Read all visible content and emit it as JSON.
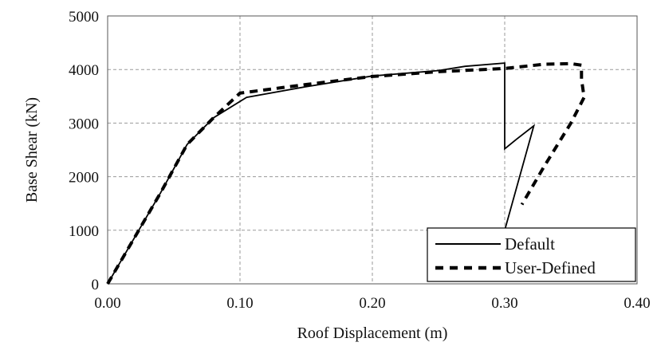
{
  "chart_data": {
    "type": "line",
    "title": "",
    "xlabel": "Roof Displacement (m)",
    "ylabel": "Base Shear (kN)",
    "xlim": [
      0,
      0.4
    ],
    "ylim": [
      0,
      5000
    ],
    "x_ticks": [
      "0.00",
      "0.10",
      "0.20",
      "0.30",
      "0.40"
    ],
    "x_tick_values": [
      0,
      0.1,
      0.2,
      0.3,
      0.4
    ],
    "y_ticks": [
      "0",
      "1000",
      "2000",
      "3000",
      "4000",
      "5000"
    ],
    "y_tick_values": [
      0,
      1000,
      2000,
      3000,
      4000,
      5000
    ],
    "grid": true,
    "legend_position": "bottom-right",
    "series": [
      {
        "name": "Default",
        "style": "solid",
        "color": "#000000",
        "points": [
          [
            0.0,
            0
          ],
          [
            0.02,
            850
          ],
          [
            0.04,
            1700
          ],
          [
            0.06,
            2600
          ],
          [
            0.08,
            3100
          ],
          [
            0.105,
            3480
          ],
          [
            0.15,
            3680
          ],
          [
            0.2,
            3880
          ],
          [
            0.25,
            3980
          ],
          [
            0.27,
            4060
          ],
          [
            0.3,
            4120
          ],
          [
            0.3,
            2520
          ],
          [
            0.309,
            2700
          ],
          [
            0.322,
            2950
          ],
          [
            0.3,
            1000
          ]
        ]
      },
      {
        "name": "User-Defined",
        "style": "dashed",
        "color": "#000000",
        "points": [
          [
            0.0,
            0
          ],
          [
            0.02,
            850
          ],
          [
            0.04,
            1700
          ],
          [
            0.06,
            2600
          ],
          [
            0.08,
            3100
          ],
          [
            0.1,
            3560
          ],
          [
            0.15,
            3720
          ],
          [
            0.2,
            3870
          ],
          [
            0.25,
            3960
          ],
          [
            0.3,
            4020
          ],
          [
            0.33,
            4100
          ],
          [
            0.35,
            4110
          ],
          [
            0.358,
            4080
          ],
          [
            0.358,
            3820
          ],
          [
            0.36,
            3480
          ],
          [
            0.35,
            3000
          ],
          [
            0.33,
            2200
          ],
          [
            0.313,
            1480
          ]
        ]
      }
    ]
  }
}
